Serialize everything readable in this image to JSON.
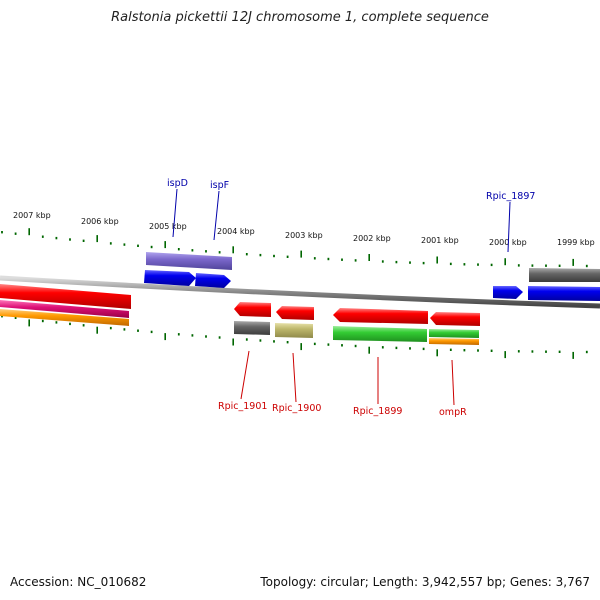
{
  "title": "Ralstonia pickettii 12J chromosome 1, complete sequence",
  "accession": "Accession: NC_010682",
  "summary": "Topology: circular; Length: 3,942,557 bp; Genes: 3,767",
  "ruler": {
    "labels": [
      "2007 kbp",
      "2006 kbp",
      "2005 kbp",
      "2004 kbp",
      "2003 kbp",
      "2002 kbp",
      "2001 kbp",
      "2000 kbp",
      "1999 kbp"
    ]
  },
  "genes_forward": [
    {
      "name": "ispD",
      "color": "#0000ee"
    },
    {
      "name": "ispF",
      "color": "#0000ee"
    },
    {
      "name": "Rpic_1897",
      "color": "#0000ee"
    }
  ],
  "genes_reverse": [
    {
      "name": "Rpic_1901",
      "color": "#ee0000"
    },
    {
      "name": "Rpic_1900",
      "color": "#ee0000"
    },
    {
      "name": "Rpic_1899",
      "color": "#ee0000"
    },
    {
      "name": "ompR",
      "color": "#ee0000"
    }
  ],
  "colors": {
    "forward": "#0000ee",
    "reverse": "#ee0000",
    "backbone": "#888888",
    "tick": "#006600",
    "purple": "#7b68cc",
    "gray": "#666666",
    "khaki": "#bdb76b",
    "green": "#33cc33",
    "orange": "#ff9900",
    "magenta": "#dd1177"
  }
}
